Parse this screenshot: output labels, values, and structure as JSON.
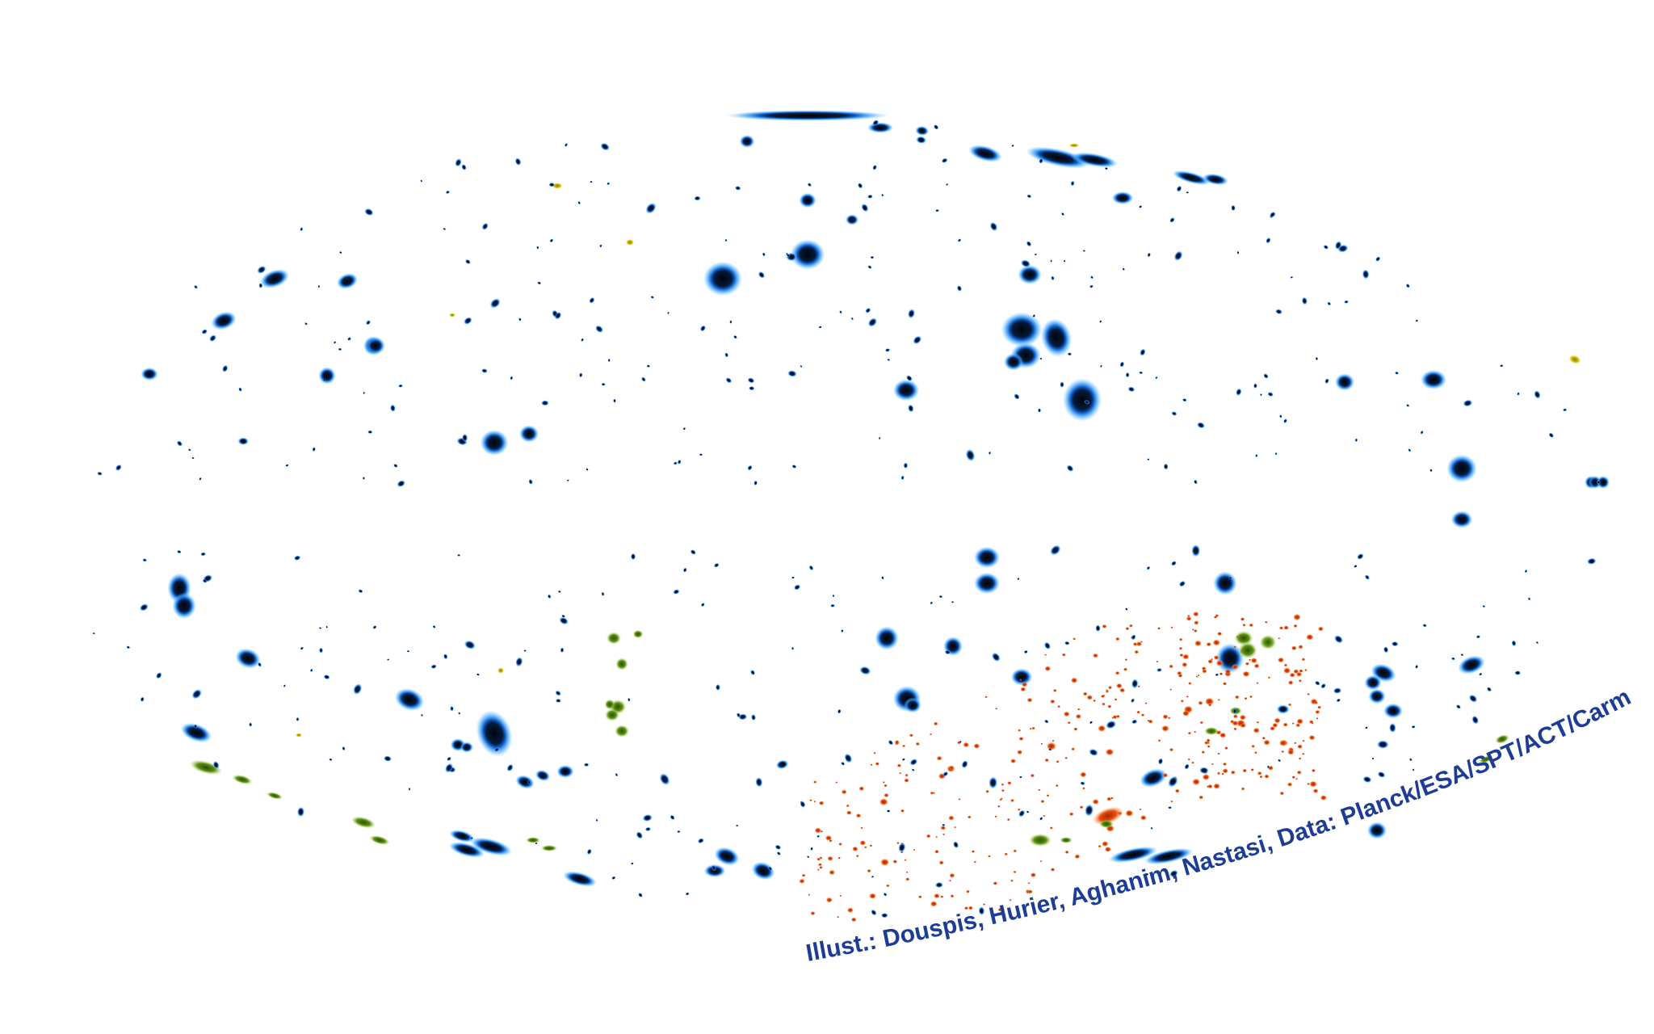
{
  "credit": {
    "text": "Illust.: Douspis, Hurier, Aghanim, Nastasi, Data: Planck/ESA/SPT/ACT/Carma/AMI"
  },
  "colors": {
    "background": "#ffffff",
    "planck_core": "#000814",
    "planck_glow": "#1e8cf0",
    "spt_cluster": "#e04a0a",
    "act_cluster": "#5a8c10",
    "carma_cluster": "#c8b400",
    "credit_text": "#1c3c96"
  }
}
